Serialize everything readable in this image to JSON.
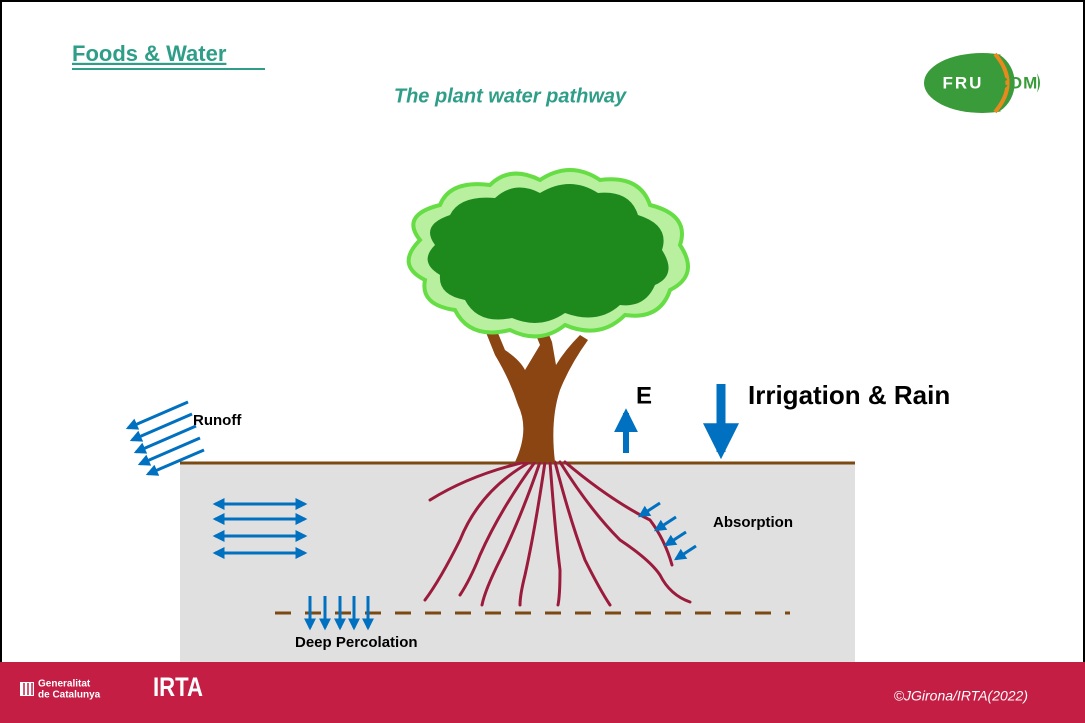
{
  "header": {
    "title": "Foods & Water",
    "subtitle": "The plant water pathway",
    "logo": {
      "left": "FRU",
      "right": "COM"
    }
  },
  "labels": {
    "runoff": "Runoff",
    "evaporation": "E",
    "irrigation": "Irrigation & Rain",
    "absorption": "Absorption",
    "percolation": "Deep Percolation"
  },
  "footer": {
    "generalitat": [
      "Generalitat",
      "de Catalunya"
    ],
    "irta": "IRTA",
    "copyright": "©JGirona/IRTA(2022)"
  }
}
